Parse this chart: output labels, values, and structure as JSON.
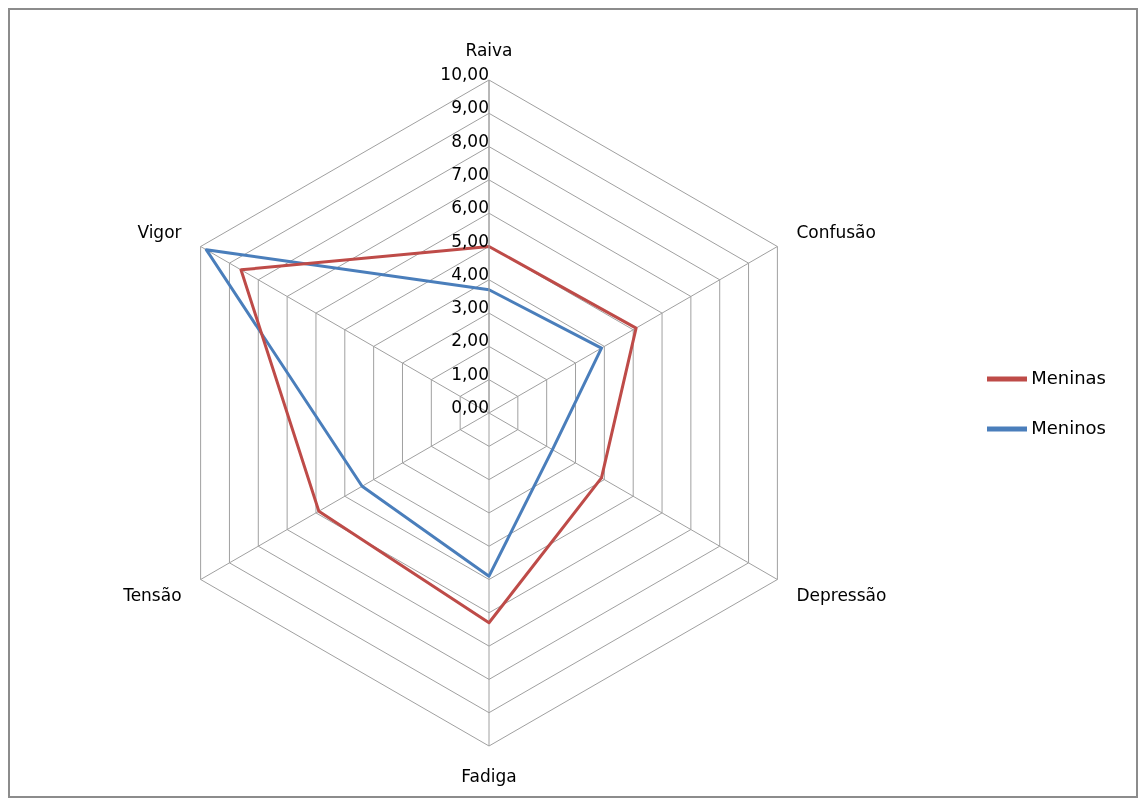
{
  "chart_data": {
    "type": "radar",
    "categories": [
      "Raiva",
      "Confusão",
      "Depressão",
      "Fadiga",
      "Tensão",
      "Vigor"
    ],
    "series": [
      {
        "name": "Meninos",
        "color": "#4a7ebb",
        "values": [
          3.7,
          3.9,
          2.2,
          4.9,
          4.4,
          9.8
        ]
      },
      {
        "name": "Meninas",
        "color": "#be4b48",
        "values": [
          5.0,
          5.1,
          3.9,
          6.3,
          5.9,
          8.6
        ]
      }
    ],
    "ylim": [
      0,
      10
    ],
    "yticks": [
      {
        "value": 0,
        "label": "0,00"
      },
      {
        "value": 1,
        "label": "1,00"
      },
      {
        "value": 2,
        "label": "2,00"
      },
      {
        "value": 3,
        "label": "3,00"
      },
      {
        "value": 4,
        "label": "4,00"
      },
      {
        "value": 5,
        "label": "5,00"
      },
      {
        "value": 6,
        "label": "6,00"
      },
      {
        "value": 7,
        "label": "7,00"
      },
      {
        "value": 8,
        "label": "8,00"
      },
      {
        "value": 9,
        "label": "9,00"
      },
      {
        "value": 10,
        "label": "10,00"
      }
    ],
    "grid": true,
    "legend": "right",
    "marker": "none"
  }
}
